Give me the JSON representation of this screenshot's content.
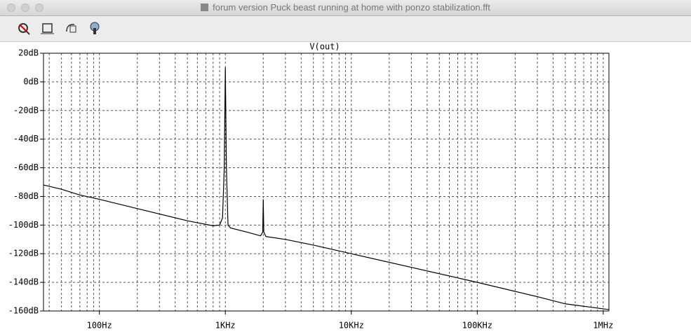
{
  "window": {
    "title": "forum version Puck beast running at home with ponzo stabilization.fft"
  },
  "chart_data": {
    "type": "line",
    "title": "V(out)",
    "log_x": true,
    "grid": true,
    "xlim": [
      36,
      1110000
    ],
    "ylim": [
      -160,
      20
    ],
    "xticks": [
      {
        "value": 100,
        "label": "100Hz"
      },
      {
        "value": 1000,
        "label": "1KHz"
      },
      {
        "value": 10000,
        "label": "10KHz"
      },
      {
        "value": 100000,
        "label": "100KHz"
      },
      {
        "value": 1000000,
        "label": "1MHz"
      }
    ],
    "yticks": [
      {
        "value": 20,
        "label": "20dB"
      },
      {
        "value": 0,
        "label": "0dB"
      },
      {
        "value": -20,
        "label": "-20dB"
      },
      {
        "value": -40,
        "label": "-40dB"
      },
      {
        "value": -60,
        "label": "-60dB"
      },
      {
        "value": -80,
        "label": "-80dB"
      },
      {
        "value": -100,
        "label": "-100dB"
      },
      {
        "value": -120,
        "label": "-120dB"
      },
      {
        "value": -140,
        "label": "-140dB"
      },
      {
        "value": -160,
        "label": "-160dB"
      }
    ],
    "series": [
      {
        "name": "V(out)",
        "color": "#000000",
        "x": [
          36,
          50,
          70,
          100,
          200,
          500,
          800,
          900,
          950,
          980,
          1000,
          1020,
          1050,
          1100,
          1500,
          1900,
          1980,
          2000,
          2020,
          2100,
          3000,
          5000,
          10000,
          100000,
          300000,
          500000,
          1000000,
          1110000
        ],
        "values": [
          -72,
          -75,
          -79,
          -82,
          -88.5,
          -97,
          -100.5,
          -100,
          -95,
          -60,
          10,
          -60,
          -100,
          -102,
          -105,
          -107.5,
          -105,
          -82,
          -105,
          -108,
          -110,
          -114,
          -120,
          -140,
          -150,
          -155,
          -158.5,
          -159
        ]
      }
    ]
  }
}
